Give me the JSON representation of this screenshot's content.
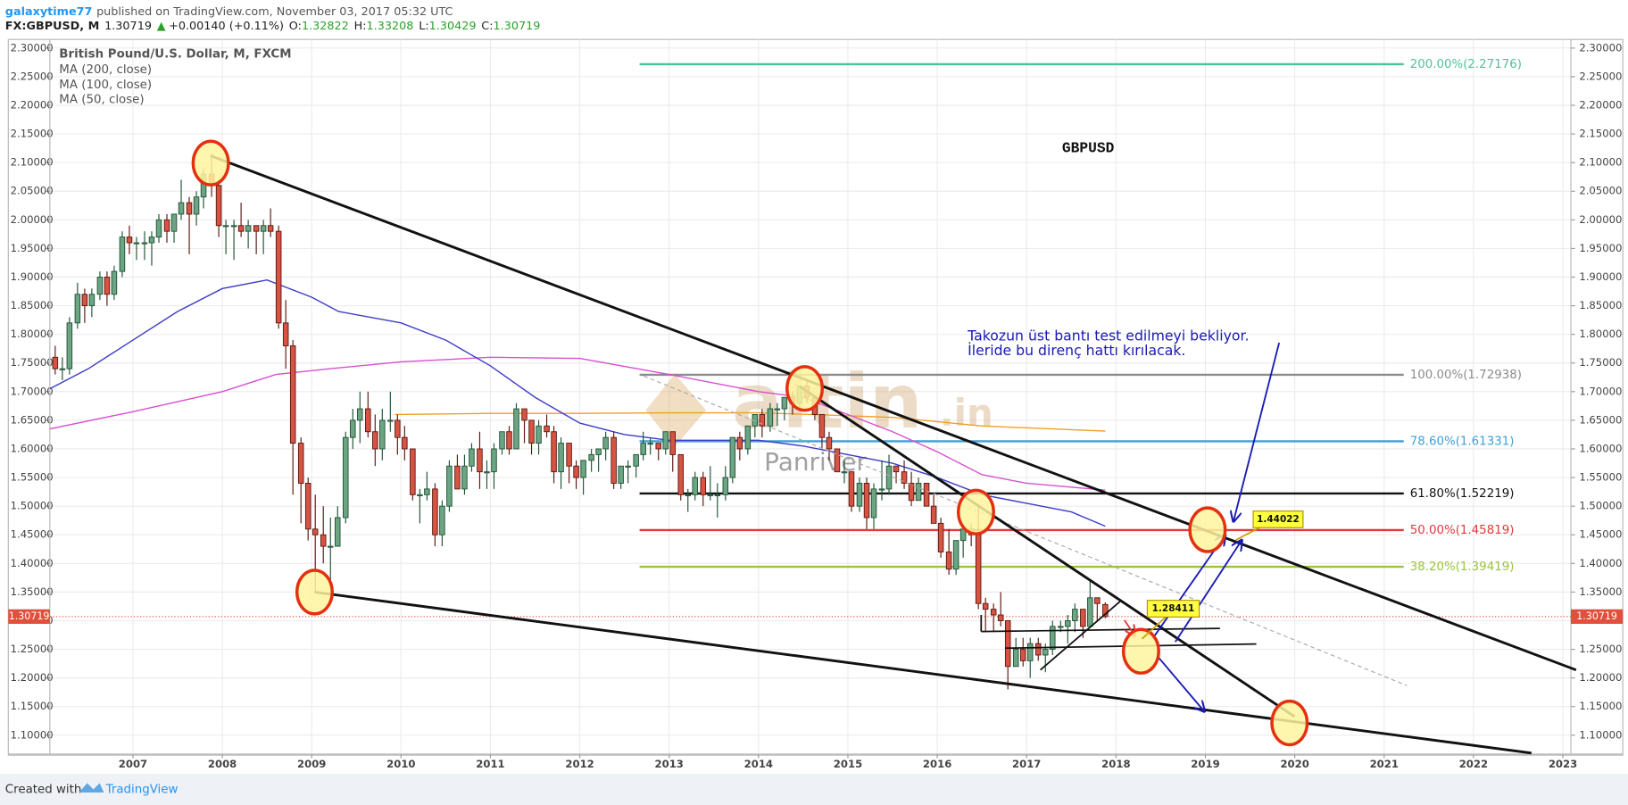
{
  "header": {
    "author": "galaxytime77",
    "published": "published on TradingView.com, November 03, 2017 05:32 UTC",
    "symbol": "FX:GBPUSD, M",
    "price": "1.30719",
    "arrow": "▲",
    "change": "+0.00140 (+0.11%)",
    "open_label": "O:",
    "open": "1.32822",
    "high_label": "H:",
    "high": "1.33208",
    "low_label": "L:",
    "low": "1.30429",
    "close_label": "C:",
    "close": "1.30719"
  },
  "footer": {
    "created": "Created with",
    "brand": "TradingView"
  },
  "chart_data": {
    "type": "candlestick",
    "title": "GBPUSD",
    "legend_title": "British Pound/U.S. Dollar, M, FXCM",
    "up_color": "#6ba583",
    "down_color": "#d75442",
    "grid": true,
    "xlim": [
      2006.07,
      2023.09
    ],
    "xticks": [
      2007,
      2008,
      2009,
      2010,
      2011,
      2012,
      2013,
      2014,
      2015,
      2016,
      2017,
      2018,
      2019,
      2020,
      2021,
      2022,
      2023
    ],
    "ylim": [
      1.067,
      2.315
    ],
    "yticks": [
      {
        "value": 1.1,
        "label": "1.10000"
      },
      {
        "value": 1.15,
        "label": "1.15000"
      },
      {
        "value": 1.2,
        "label": "1.20000"
      },
      {
        "value": 1.25,
        "label": "1.25000"
      },
      {
        "value": 1.3,
        "label": "1.30000"
      },
      {
        "value": 1.35,
        "label": "1.35000"
      },
      {
        "value": 1.4,
        "label": "1.40000"
      },
      {
        "value": 1.45,
        "label": "1.45000"
      },
      {
        "value": 1.5,
        "label": "1.50000"
      },
      {
        "value": 1.55,
        "label": "1.55000"
      },
      {
        "value": 1.6,
        "label": "1.60000"
      },
      {
        "value": 1.65,
        "label": "1.65000"
      },
      {
        "value": 1.7,
        "label": "1.70000"
      },
      {
        "value": 1.75,
        "label": "1.75000"
      },
      {
        "value": 1.8,
        "label": "1.80000"
      },
      {
        "value": 1.85,
        "label": "1.85000"
      },
      {
        "value": 1.9,
        "label": "1.90000"
      },
      {
        "value": 1.95,
        "label": "1.95000"
      },
      {
        "value": 2.0,
        "label": "2.00000"
      },
      {
        "value": 2.05,
        "label": "2.05000"
      },
      {
        "value": 2.1,
        "label": "2.10000"
      },
      {
        "value": 2.15,
        "label": "2.15000"
      },
      {
        "value": 2.2,
        "label": "2.20000"
      },
      {
        "value": 2.25,
        "label": "2.25000"
      },
      {
        "value": 2.3,
        "label": "2.30000"
      }
    ],
    "ohlc": [
      [
        2006.13,
        1.76,
        1.78,
        1.73,
        1.74
      ],
      [
        2006.21,
        1.74,
        1.76,
        1.72,
        1.74
      ],
      [
        2006.29,
        1.74,
        1.83,
        1.73,
        1.82
      ],
      [
        2006.38,
        1.82,
        1.89,
        1.81,
        1.87
      ],
      [
        2006.46,
        1.87,
        1.88,
        1.82,
        1.85
      ],
      [
        2006.54,
        1.85,
        1.88,
        1.83,
        1.87
      ],
      [
        2006.63,
        1.87,
        1.91,
        1.86,
        1.9
      ],
      [
        2006.71,
        1.9,
        1.91,
        1.85,
        1.87
      ],
      [
        2006.79,
        1.87,
        1.92,
        1.86,
        1.91
      ],
      [
        2006.88,
        1.91,
        1.98,
        1.9,
        1.97
      ],
      [
        2006.96,
        1.97,
        1.99,
        1.94,
        1.96
      ],
      [
        2007.04,
        1.96,
        1.97,
        1.93,
        1.96
      ],
      [
        2007.13,
        1.96,
        1.98,
        1.93,
        1.96
      ],
      [
        2007.21,
        1.96,
        1.98,
        1.92,
        1.97
      ],
      [
        2007.29,
        1.97,
        2.01,
        1.96,
        2.0
      ],
      [
        2007.38,
        2.0,
        2.01,
        1.96,
        1.98
      ],
      [
        2007.46,
        1.98,
        2.01,
        1.96,
        2.01
      ],
      [
        2007.54,
        2.01,
        2.07,
        2.0,
        2.03
      ],
      [
        2007.63,
        2.03,
        2.04,
        1.94,
        2.01
      ],
      [
        2007.71,
        2.01,
        2.05,
        1.99,
        2.04
      ],
      [
        2007.79,
        2.04,
        2.09,
        2.02,
        2.08
      ],
      [
        2007.88,
        2.08,
        2.1161,
        2.04,
        2.06
      ],
      [
        2007.96,
        2.06,
        2.07,
        1.97,
        1.99
      ],
      [
        2008.04,
        1.99,
        2.0,
        1.94,
        1.99
      ],
      [
        2008.13,
        1.99,
        2.0,
        1.93,
        1.99
      ],
      [
        2008.21,
        1.99,
        2.03,
        1.97,
        1.98
      ],
      [
        2008.29,
        1.98,
        2.0,
        1.95,
        1.99
      ],
      [
        2008.38,
        1.99,
        1.99,
        1.94,
        1.98
      ],
      [
        2008.46,
        1.98,
        2.0,
        1.94,
        1.99
      ],
      [
        2008.54,
        1.99,
        2.02,
        1.97,
        1.98
      ],
      [
        2008.63,
        1.98,
        1.99,
        1.81,
        1.82
      ],
      [
        2008.71,
        1.82,
        1.86,
        1.74,
        1.78
      ],
      [
        2008.79,
        1.78,
        1.79,
        1.52,
        1.61
      ],
      [
        2008.88,
        1.61,
        1.62,
        1.47,
        1.54
      ],
      [
        2008.96,
        1.54,
        1.55,
        1.44,
        1.46
      ],
      [
        2009.04,
        1.46,
        1.52,
        1.35,
        1.45
      ],
      [
        2009.13,
        1.45,
        1.5,
        1.4,
        1.43
      ],
      [
        2009.21,
        1.43,
        1.48,
        1.37,
        1.43
      ],
      [
        2009.29,
        1.43,
        1.5,
        1.43,
        1.48
      ],
      [
        2009.38,
        1.48,
        1.63,
        1.47,
        1.62
      ],
      [
        2009.46,
        1.62,
        1.67,
        1.6,
        1.65
      ],
      [
        2009.54,
        1.65,
        1.7,
        1.61,
        1.67
      ],
      [
        2009.63,
        1.67,
        1.7,
        1.62,
        1.63
      ],
      [
        2009.71,
        1.63,
        1.66,
        1.57,
        1.6
      ],
      [
        2009.79,
        1.6,
        1.67,
        1.58,
        1.65
      ],
      [
        2009.88,
        1.65,
        1.7,
        1.63,
        1.65
      ],
      [
        2009.96,
        1.65,
        1.66,
        1.59,
        1.62
      ],
      [
        2010.04,
        1.62,
        1.64,
        1.58,
        1.6
      ],
      [
        2010.13,
        1.6,
        1.6,
        1.51,
        1.52
      ],
      [
        2010.21,
        1.52,
        1.53,
        1.47,
        1.52
      ],
      [
        2010.29,
        1.52,
        1.56,
        1.51,
        1.53
      ],
      [
        2010.38,
        1.53,
        1.54,
        1.43,
        1.45
      ],
      [
        2010.46,
        1.45,
        1.51,
        1.43,
        1.5
      ],
      [
        2010.54,
        1.5,
        1.58,
        1.49,
        1.57
      ],
      [
        2010.63,
        1.57,
        1.59,
        1.53,
        1.53
      ],
      [
        2010.71,
        1.53,
        1.59,
        1.52,
        1.57
      ],
      [
        2010.79,
        1.57,
        1.61,
        1.56,
        1.6
      ],
      [
        2010.88,
        1.6,
        1.63,
        1.53,
        1.56
      ],
      [
        2010.96,
        1.56,
        1.58,
        1.53,
        1.56
      ],
      [
        2011.04,
        1.56,
        1.61,
        1.53,
        1.6
      ],
      [
        2011.13,
        1.6,
        1.63,
        1.59,
        1.63
      ],
      [
        2011.21,
        1.63,
        1.64,
        1.59,
        1.6
      ],
      [
        2011.29,
        1.6,
        1.68,
        1.6,
        1.67
      ],
      [
        2011.38,
        1.67,
        1.67,
        1.61,
        1.65
      ],
      [
        2011.46,
        1.65,
        1.65,
        1.59,
        1.61
      ],
      [
        2011.54,
        1.61,
        1.65,
        1.59,
        1.64
      ],
      [
        2011.63,
        1.64,
        1.66,
        1.62,
        1.63
      ],
      [
        2011.71,
        1.63,
        1.64,
        1.54,
        1.56
      ],
      [
        2011.79,
        1.56,
        1.62,
        1.53,
        1.61
      ],
      [
        2011.88,
        1.61,
        1.61,
        1.54,
        1.57
      ],
      [
        2011.96,
        1.57,
        1.58,
        1.53,
        1.55
      ],
      [
        2012.04,
        1.55,
        1.58,
        1.52,
        1.58
      ],
      [
        2012.13,
        1.58,
        1.6,
        1.56,
        1.59
      ],
      [
        2012.21,
        1.59,
        1.6,
        1.56,
        1.6
      ],
      [
        2012.29,
        1.6,
        1.63,
        1.58,
        1.62
      ],
      [
        2012.38,
        1.62,
        1.63,
        1.53,
        1.54
      ],
      [
        2012.46,
        1.54,
        1.57,
        1.53,
        1.57
      ],
      [
        2012.54,
        1.57,
        1.58,
        1.54,
        1.57
      ],
      [
        2012.63,
        1.57,
        1.59,
        1.55,
        1.59
      ],
      [
        2012.71,
        1.59,
        1.63,
        1.58,
        1.61
      ],
      [
        2012.79,
        1.61,
        1.62,
        1.59,
        1.61
      ],
      [
        2012.88,
        1.61,
        1.61,
        1.58,
        1.6
      ],
      [
        2012.96,
        1.6,
        1.63,
        1.59,
        1.63
      ],
      [
        2013.04,
        1.63,
        1.63,
        1.56,
        1.59
      ],
      [
        2013.13,
        1.59,
        1.59,
        1.51,
        1.52
      ],
      [
        2013.21,
        1.52,
        1.53,
        1.49,
        1.52
      ],
      [
        2013.29,
        1.52,
        1.56,
        1.51,
        1.55
      ],
      [
        2013.38,
        1.55,
        1.56,
        1.5,
        1.52
      ],
      [
        2013.46,
        1.52,
        1.57,
        1.51,
        1.52
      ],
      [
        2013.54,
        1.52,
        1.54,
        1.48,
        1.52
      ],
      [
        2013.63,
        1.52,
        1.57,
        1.51,
        1.55
      ],
      [
        2013.71,
        1.55,
        1.62,
        1.54,
        1.62
      ],
      [
        2013.79,
        1.62,
        1.63,
        1.58,
        1.6
      ],
      [
        2013.88,
        1.6,
        1.64,
        1.59,
        1.64
      ],
      [
        2013.96,
        1.64,
        1.66,
        1.62,
        1.66
      ],
      [
        2014.04,
        1.66,
        1.67,
        1.62,
        1.64
      ],
      [
        2014.13,
        1.64,
        1.68,
        1.63,
        1.67
      ],
      [
        2014.21,
        1.67,
        1.68,
        1.64,
        1.67
      ],
      [
        2014.29,
        1.67,
        1.69,
        1.65,
        1.69
      ],
      [
        2014.38,
        1.69,
        1.7,
        1.66,
        1.68
      ],
      [
        2014.46,
        1.68,
        1.71,
        1.67,
        1.71
      ],
      [
        2014.54,
        1.71,
        1.72,
        1.68,
        1.69
      ],
      [
        2014.63,
        1.69,
        1.69,
        1.65,
        1.66
      ],
      [
        2014.71,
        1.66,
        1.66,
        1.6,
        1.62
      ],
      [
        2014.79,
        1.62,
        1.63,
        1.58,
        1.6
      ],
      [
        2014.88,
        1.6,
        1.6,
        1.56,
        1.56
      ],
      [
        2014.96,
        1.56,
        1.58,
        1.54,
        1.56
      ],
      [
        2015.04,
        1.56,
        1.56,
        1.49,
        1.5
      ],
      [
        2015.13,
        1.5,
        1.55,
        1.49,
        1.54
      ],
      [
        2015.21,
        1.54,
        1.55,
        1.46,
        1.48
      ],
      [
        2015.29,
        1.48,
        1.54,
        1.46,
        1.53
      ],
      [
        2015.38,
        1.53,
        1.58,
        1.51,
        1.53
      ],
      [
        2015.46,
        1.53,
        1.59,
        1.52,
        1.57
      ],
      [
        2015.54,
        1.57,
        1.57,
        1.54,
        1.56
      ],
      [
        2015.63,
        1.56,
        1.58,
        1.53,
        1.54
      ],
      [
        2015.71,
        1.54,
        1.56,
        1.5,
        1.51
      ],
      [
        2015.79,
        1.51,
        1.55,
        1.51,
        1.54
      ],
      [
        2015.88,
        1.54,
        1.54,
        1.5,
        1.5
      ],
      [
        2015.96,
        1.5,
        1.52,
        1.47,
        1.47
      ],
      [
        2016.04,
        1.47,
        1.48,
        1.41,
        1.42
      ],
      [
        2016.13,
        1.42,
        1.46,
        1.38,
        1.39
      ],
      [
        2016.21,
        1.39,
        1.44,
        1.38,
        1.44
      ],
      [
        2016.29,
        1.44,
        1.47,
        1.41,
        1.46
      ],
      [
        2016.38,
        1.46,
        1.47,
        1.43,
        1.45
      ],
      [
        2016.46,
        1.45,
        1.5,
        1.32,
        1.33
      ],
      [
        2016.54,
        1.33,
        1.34,
        1.28,
        1.32
      ],
      [
        2016.63,
        1.32,
        1.33,
        1.28,
        1.31
      ],
      [
        2016.71,
        1.31,
        1.35,
        1.29,
        1.3
      ],
      [
        2016.79,
        1.3,
        1.3,
        1.18,
        1.22
      ],
      [
        2016.88,
        1.22,
        1.27,
        1.22,
        1.25
      ],
      [
        2016.96,
        1.25,
        1.27,
        1.22,
        1.23
      ],
      [
        2017.04,
        1.23,
        1.27,
        1.2,
        1.26
      ],
      [
        2017.13,
        1.26,
        1.27,
        1.23,
        1.24
      ],
      [
        2017.21,
        1.24,
        1.26,
        1.21,
        1.25
      ],
      [
        2017.29,
        1.25,
        1.3,
        1.24,
        1.29
      ],
      [
        2017.38,
        1.29,
        1.3,
        1.28,
        1.29
      ],
      [
        2017.46,
        1.29,
        1.31,
        1.26,
        1.3
      ],
      [
        2017.54,
        1.3,
        1.33,
        1.28,
        1.32
      ],
      [
        2017.63,
        1.32,
        1.32,
        1.27,
        1.29
      ],
      [
        2017.71,
        1.29,
        1.37,
        1.29,
        1.34
      ],
      [
        2017.79,
        1.34,
        1.34,
        1.3,
        1.33
      ],
      [
        2017.88,
        1.3282,
        1.3321,
        1.3043,
        1.3072
      ]
    ],
    "moving_averages": [
      {
        "name": "MA (200, close)",
        "color": "#f39c26",
        "x": [
          2009.93,
          2011.0,
          2012.0,
          2013.0,
          2014.0,
          2014.6,
          2015.5,
          2016.5,
          2017.88
        ],
        "values": [
          1.66,
          1.662,
          1.662,
          1.663,
          1.663,
          1.66,
          1.655,
          1.64,
          1.631
        ]
      },
      {
        "name": "MA (100, close)",
        "color": "#d84fd0",
        "x": [
          2006.07,
          2007.0,
          2008.0,
          2008.6,
          2009.2,
          2010.0,
          2011.0,
          2012.0,
          2013.0,
          2014.0,
          2014.5,
          2015.0,
          2015.5,
          2016.0,
          2016.5,
          2017.0,
          2017.88
        ],
        "values": [
          1.635,
          1.665,
          1.7,
          1.73,
          1.74,
          1.752,
          1.76,
          1.758,
          1.73,
          1.7,
          1.69,
          1.66,
          1.63,
          1.595,
          1.555,
          1.54,
          1.528
        ]
      },
      {
        "name": "MA (50, close)",
        "color": "#3c3cc8",
        "x": [
          2006.07,
          2006.5,
          2007.0,
          2007.5,
          2008.0,
          2008.5,
          2009.0,
          2009.3,
          2010.0,
          2010.5,
          2011.0,
          2011.5,
          2012.0,
          2012.5,
          2013.0,
          2014.0,
          2014.5,
          2015.0,
          2015.5,
          2016.0,
          2016.5,
          2017.0,
          2017.5,
          2017.88
        ],
        "values": [
          1.705,
          1.74,
          1.79,
          1.84,
          1.88,
          1.895,
          1.865,
          1.84,
          1.82,
          1.79,
          1.745,
          1.69,
          1.645,
          1.625,
          1.615,
          1.615,
          1.605,
          1.59,
          1.575,
          1.55,
          1.52,
          1.505,
          1.49,
          1.465
        ]
      }
    ],
    "fib_levels": [
      {
        "label": "200.00%(2.27176)",
        "price": 2.27176,
        "color": "#4cc29c"
      },
      {
        "label": "100.00%(1.72938)",
        "price": 1.72938,
        "color": "#8c8c8c"
      },
      {
        "label": "78.60%(1.61331)",
        "price": 1.61331,
        "color": "#3f9fd8"
      },
      {
        "label": "61.80%(1.52219)",
        "price": 1.52219,
        "color": "#111111"
      },
      {
        "label": "50.00%(1.45819)",
        "price": 1.45819,
        "color": "#e03a3a"
      },
      {
        "label": "38.20%(1.39419)",
        "price": 1.39419,
        "color": "#9cc33f"
      }
    ],
    "last_price": {
      "value": 1.30719,
      "label": "1.30719",
      "color": "#e0503c"
    },
    "notes": [
      "Takozun üst bantı test edilmeyi bekliyor.",
      "İleride bu direnç hattı kırılacak."
    ],
    "callouts": [
      "1.28411",
      "1.44022"
    ],
    "watermark": {
      "logo": "altin",
      "suffix": ".in",
      "text": "Panriver"
    }
  }
}
